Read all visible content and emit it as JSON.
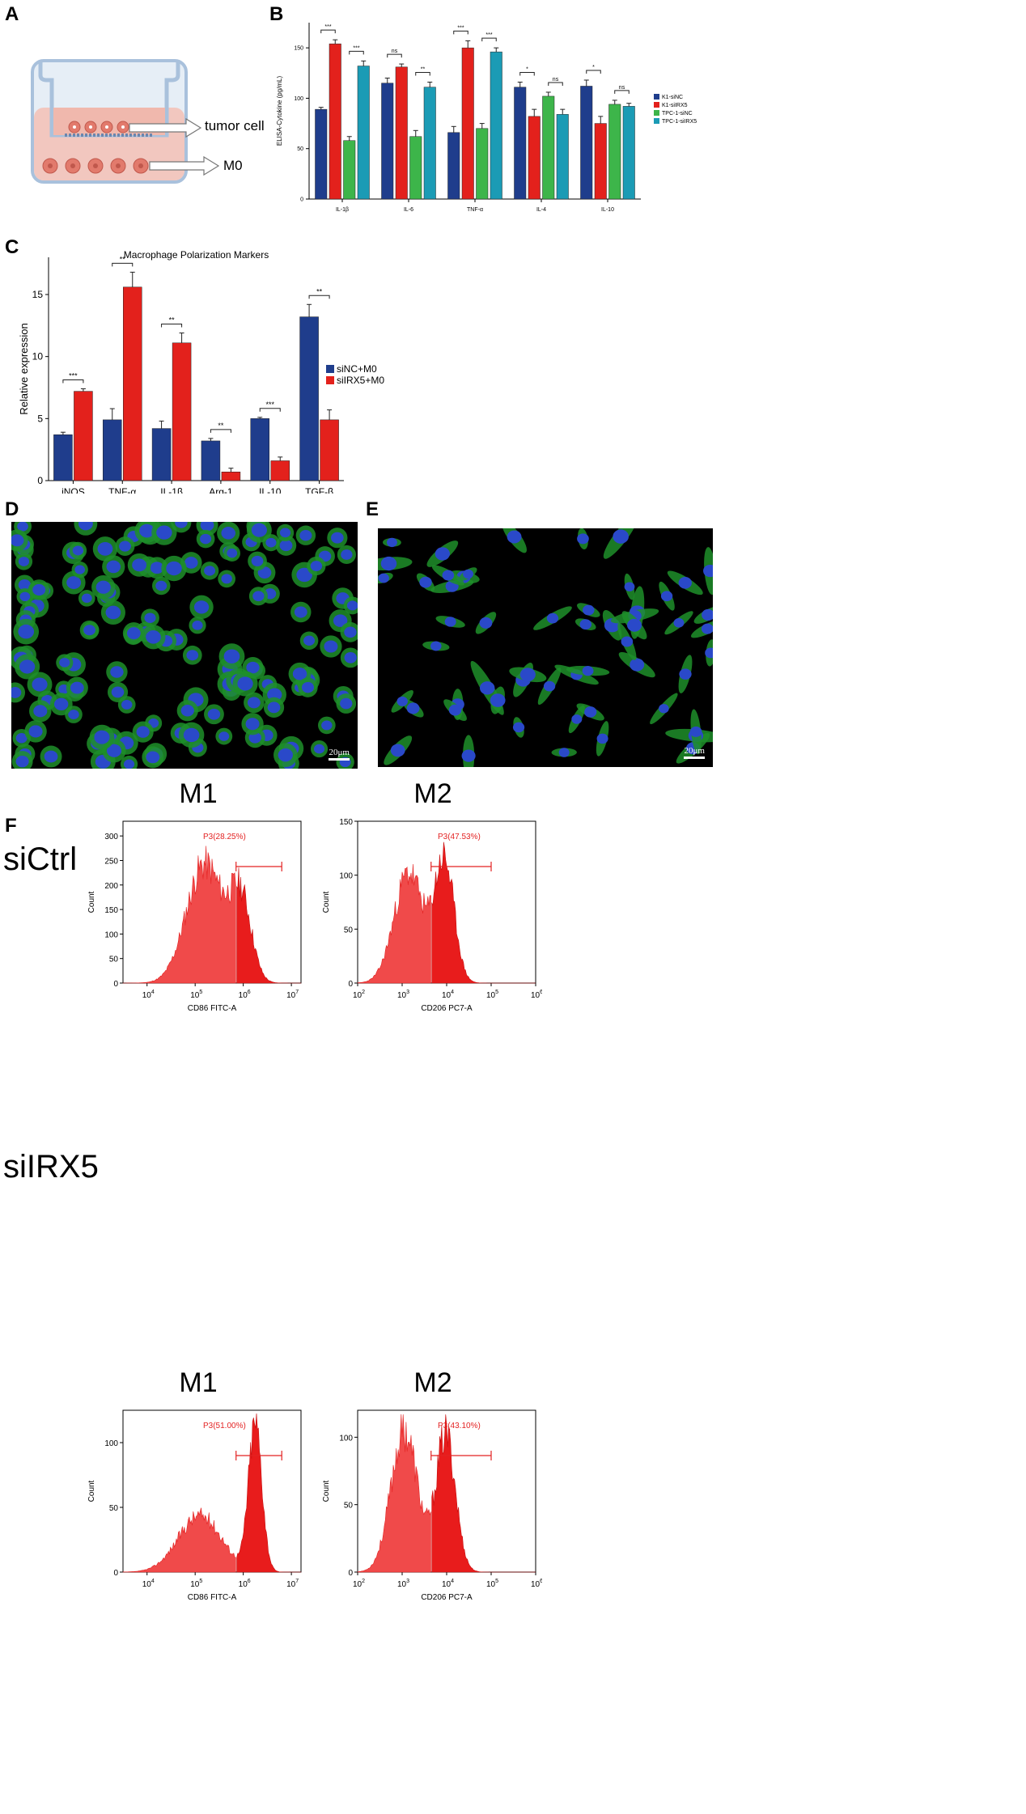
{
  "panels": {
    "A": "A",
    "B": "B",
    "C": "C",
    "D": "D",
    "E": "E",
    "F": "F"
  },
  "panel_a": {
    "label_tumor": "tumor cell",
    "label_m0": "M0"
  },
  "scale_bar": "20μm",
  "flow_rows": [
    "siCtrl",
    "siIRX5"
  ],
  "chart_data": [
    {
      "id": "B",
      "type": "bar",
      "title": "",
      "ylabel": "ELISA-Cytokine (pg/mL)",
      "xlabel": "",
      "ylim": [
        0,
        175
      ],
      "yticks": [
        0,
        50,
        100,
        150
      ],
      "categories": [
        "IL-1β",
        "IL-6",
        "TNF-α",
        "IL-4",
        "IL-10"
      ],
      "series": [
        {
          "name": "K1-siNC",
          "color": "#1f3d8c",
          "values": [
            89,
            115,
            66,
            111,
            112
          ],
          "errors": [
            2,
            5,
            6,
            5,
            6
          ]
        },
        {
          "name": "K1-siIRX5",
          "color": "#e3211c",
          "values": [
            154,
            131,
            150,
            82,
            75
          ],
          "errors": [
            4,
            3,
            7,
            7,
            7
          ]
        },
        {
          "name": "TPC-1-siNC",
          "color": "#3db54a",
          "values": [
            58,
            62,
            70,
            102,
            94
          ],
          "errors": [
            4,
            6,
            5,
            4,
            4
          ]
        },
        {
          "name": "TPC-1-siIRX5",
          "color": "#1b9bb5",
          "values": [
            132,
            111,
            146,
            84,
            92
          ],
          "errors": [
            5,
            5,
            4,
            5,
            3
          ]
        }
      ],
      "significance": [
        {
          "category": 0,
          "pairs": [
            [
              "***",
              0,
              1
            ],
            [
              "***",
              2,
              3
            ]
          ]
        },
        {
          "category": 1,
          "pairs": [
            [
              "ns",
              0,
              1
            ],
            [
              "**",
              2,
              3
            ]
          ]
        },
        {
          "category": 2,
          "pairs": [
            [
              "***",
              0,
              1
            ],
            [
              "***",
              2,
              3
            ]
          ]
        },
        {
          "category": 3,
          "pairs": [
            [
              "*",
              0,
              1
            ],
            [
              "ns",
              2,
              3
            ]
          ]
        },
        {
          "category": 4,
          "pairs": [
            [
              "*",
              0,
              1
            ],
            [
              "ns",
              2,
              3
            ]
          ]
        }
      ],
      "legend": "right"
    },
    {
      "id": "C",
      "type": "bar",
      "title": "Macrophage Polarization Markers",
      "ylabel": "Relative expression",
      "xlabel": "",
      "ylim": [
        0,
        18
      ],
      "yticks": [
        0,
        5,
        10,
        15
      ],
      "categories": [
        "iNOS",
        "TNF-α",
        "IL-1β",
        "Arg-1",
        "IL-10",
        "TGF-β"
      ],
      "series": [
        {
          "name": "siNC+M0",
          "color": "#1f3d8c",
          "values": [
            3.7,
            4.9,
            4.2,
            3.2,
            5.0,
            13.2
          ],
          "errors": [
            0.2,
            0.9,
            0.6,
            0.2,
            0.1,
            1.0
          ]
        },
        {
          "name": "siIRX5+M0",
          "color": "#e3211c",
          "values": [
            7.2,
            15.6,
            11.1,
            0.7,
            1.6,
            4.9
          ],
          "errors": [
            0.2,
            1.2,
            0.8,
            0.3,
            0.3,
            0.8
          ]
        }
      ],
      "significance": [
        "***",
        "**",
        "**",
        "**",
        "***",
        "**"
      ],
      "legend": "right"
    },
    {
      "id": "F-siCtrl-M1",
      "type": "area",
      "title": "M1",
      "xlabel": "CD86 FITC-A",
      "ylabel": "Count",
      "ylim": [
        0,
        330
      ],
      "yticks": [
        0,
        50,
        100,
        150,
        200,
        250,
        300
      ],
      "xlog_range": [
        3.5,
        7.2
      ],
      "xticks": [
        4,
        5,
        6,
        7
      ],
      "gate_label": "P3(28.25%)",
      "gate_range": [
        5.85,
        6.8
      ],
      "peaks": [
        {
          "center": 5.2,
          "width": 0.38,
          "height": 250
        },
        {
          "center": 5.95,
          "width": 0.22,
          "height": 170
        }
      ]
    },
    {
      "id": "F-siCtrl-M2",
      "type": "area",
      "title": "M2",
      "xlabel": "CD206 PC7-A",
      "ylabel": "Count",
      "ylim": [
        0,
        150
      ],
      "yticks": [
        0,
        50,
        100,
        150
      ],
      "xlog_range": [
        2,
        6
      ],
      "xticks": [
        2,
        3,
        4,
        5,
        6
      ],
      "gate_label": "P3(47.53%)",
      "gate_range": [
        3.65,
        5.0
      ],
      "peaks": [
        {
          "center": 3.15,
          "width": 0.33,
          "height": 105
        },
        {
          "center": 3.95,
          "width": 0.22,
          "height": 115
        }
      ]
    },
    {
      "id": "F-siIRX5-M1",
      "type": "area",
      "title": "M1",
      "xlabel": "CD86 FITC-A",
      "ylabel": "Count",
      "ylim": [
        0,
        125
      ],
      "yticks": [
        0,
        50,
        100
      ],
      "xlog_range": [
        3.5,
        7.2
      ],
      "xticks": [
        4,
        5,
        6,
        7
      ],
      "gate_label": "P3(51.00%)",
      "gate_range": [
        5.85,
        6.8
      ],
      "peaks": [
        {
          "center": 5.1,
          "width": 0.45,
          "height": 45
        },
        {
          "center": 6.25,
          "width": 0.14,
          "height": 118
        }
      ]
    },
    {
      "id": "F-siIRX5-M2",
      "type": "area",
      "title": "M2",
      "xlabel": "CD206 PC7-A",
      "ylabel": "Count",
      "ylim": [
        0,
        120
      ],
      "yticks": [
        0,
        50,
        100
      ],
      "xlog_range": [
        2,
        6
      ],
      "xticks": [
        2,
        3,
        4,
        5,
        6
      ],
      "gate_label": "P3(43.10%)",
      "gate_range": [
        3.65,
        5.0
      ],
      "peaks": [
        {
          "center": 3.05,
          "width": 0.3,
          "height": 108
        },
        {
          "center": 3.98,
          "width": 0.22,
          "height": 105
        }
      ]
    }
  ]
}
